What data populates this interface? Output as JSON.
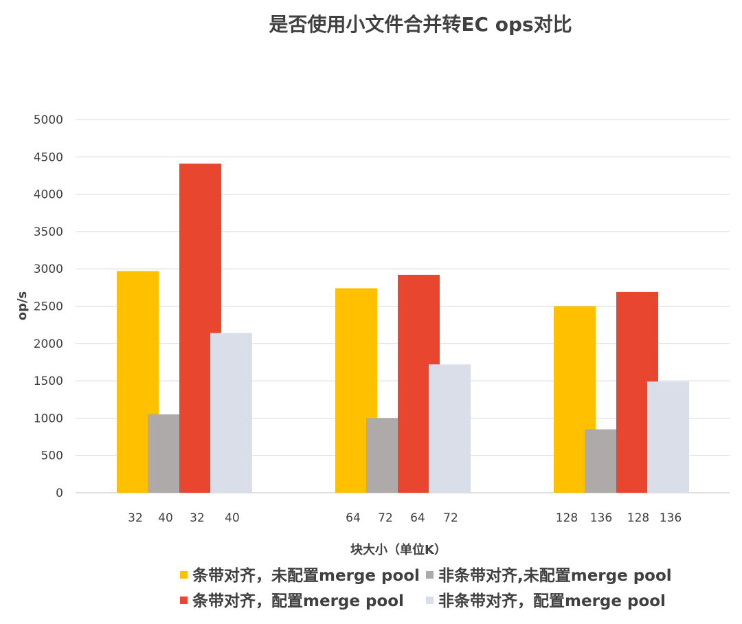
{
  "chart_data": {
    "type": "bar",
    "title": "是否使用小文件合并转EC ops对比",
    "xlabel": "块大小（单位K）",
    "ylabel": "op/s",
    "ylim": [
      0,
      5000
    ],
    "yticks": [
      0,
      500,
      1000,
      1500,
      2000,
      2500,
      3000,
      3500,
      4000,
      4500,
      5000
    ],
    "grid": true,
    "legend_placement": "bottom",
    "groups": [
      {
        "tick_labels": [
          "32",
          "40",
          "32",
          "40"
        ]
      },
      {
        "tick_labels": [
          "64",
          "72",
          "64",
          "72"
        ]
      },
      {
        "tick_labels": [
          "128",
          "136",
          "128",
          "136"
        ]
      }
    ],
    "series": [
      {
        "name": "条带对齐，未配置merge pool",
        "color": "#FFC000",
        "values": [
          2970,
          2740,
          2500
        ]
      },
      {
        "name": "非条带对齐,未配置merge pool",
        "color": "#AEAAAA",
        "values": [
          1050,
          1000,
          850
        ]
      },
      {
        "name": "条带对齐，配置merge pool",
        "color": "#E8462E",
        "values": [
          4410,
          2920,
          2690
        ]
      },
      {
        "name": "非条带对齐，配置merge pool",
        "color": "#D9DEE8",
        "values": [
          2140,
          1720,
          1490
        ]
      }
    ]
  }
}
